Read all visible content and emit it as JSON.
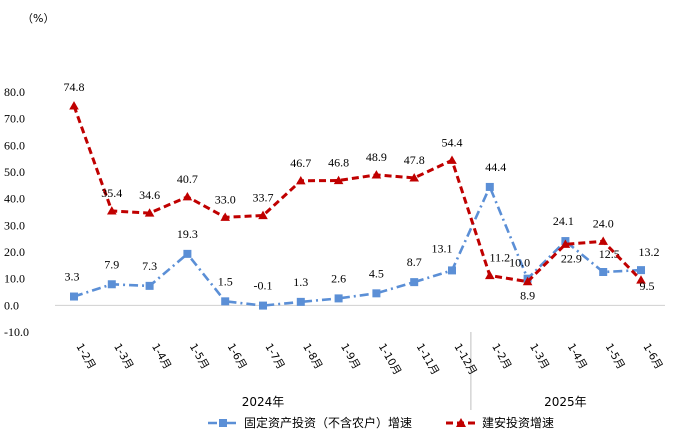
{
  "chart_data": {
    "type": "line",
    "unit_label": "（%）",
    "y_ticks": [
      "80.0",
      "70.0",
      "60.0",
      "50.0",
      "40.0",
      "30.0",
      "20.0",
      "10.0",
      "0.0",
      "-10.0"
    ],
    "ylim": [
      -10,
      80
    ],
    "categories": [
      "1-2月",
      "1-3月",
      "1-4月",
      "1-5月",
      "1-6月",
      "1-7月",
      "1-8月",
      "1-9月",
      "1-10月",
      "1-11月",
      "1-12月",
      "1-2月",
      "1-3月",
      "1-4月",
      "1-5月",
      "1-6月"
    ],
    "year_groups": [
      {
        "label": "2024年",
        "start": 0,
        "end": 10
      },
      {
        "label": "2025年",
        "start": 11,
        "end": 15
      }
    ],
    "series": [
      {
        "name": "固定资产投资（不含农户）增速",
        "color": "#5B8FD6",
        "marker": "square",
        "values": [
          3.3,
          7.9,
          7.3,
          19.3,
          1.5,
          -0.1,
          1.3,
          2.6,
          4.5,
          8.7,
          13.1,
          44.4,
          10.0,
          24.1,
          12.5,
          13.2
        ],
        "labels": [
          "3.3",
          "7.9",
          "7.3",
          "19.3",
          "1.5",
          "-0.1",
          "1.3",
          "2.6",
          "4.5",
          "8.7",
          "13.1",
          "44.4",
          "10.0",
          "24.1",
          "12.5",
          "13.2"
        ]
      },
      {
        "name": "建安投资增速",
        "color": "#C00000",
        "marker": "triangle",
        "values": [
          74.8,
          35.4,
          34.6,
          40.7,
          33.0,
          33.7,
          46.7,
          46.8,
          48.9,
          47.8,
          54.4,
          11.2,
          8.9,
          22.9,
          24.0,
          9.5
        ],
        "labels": [
          "74.8",
          "35.4",
          "34.6",
          "40.7",
          "33.0",
          "33.7",
          "46.7",
          "46.8",
          "48.9",
          "47.8",
          "54.4",
          "11.2",
          "8.9",
          "22.9",
          "24.0",
          "9.5"
        ]
      }
    ],
    "grid": false,
    "legend": "bottom"
  }
}
